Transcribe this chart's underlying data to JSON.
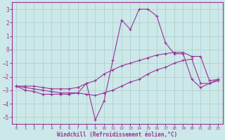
{
  "xlabel": "Windchill (Refroidissement éolien,°C)",
  "background_color": "#cce8e8",
  "grid_color": "#aacccc",
  "line_color": "#993399",
  "xlim": [
    -0.5,
    23.5
  ],
  "ylim": [
    -5.5,
    3.5
  ],
  "yticks": [
    -5,
    -4,
    -3,
    -2,
    -1,
    0,
    1,
    2,
    3
  ],
  "xticks": [
    0,
    1,
    2,
    3,
    4,
    5,
    6,
    7,
    8,
    9,
    10,
    11,
    12,
    13,
    14,
    15,
    16,
    17,
    18,
    19,
    20,
    21,
    22,
    23
  ],
  "series": [
    {
      "x": [
        0,
        1,
        2,
        3,
        4,
        5,
        6,
        7,
        8,
        9,
        10,
        11,
        12,
        13,
        14,
        15,
        16,
        17,
        18,
        19,
        20,
        21,
        22,
        23
      ],
      "y": [
        -2.7,
        -3.0,
        -3.1,
        -3.3,
        -3.3,
        -3.3,
        -3.3,
        -3.2,
        -2.5,
        -5.2,
        -3.8,
        -0.8,
        2.2,
        1.5,
        3.0,
        3.0,
        2.5,
        0.5,
        -0.3,
        -0.3,
        -2.2,
        -2.8,
        -2.5,
        -2.2
      ]
    },
    {
      "x": [
        0,
        1,
        2,
        3,
        4,
        5,
        6,
        7,
        8,
        9,
        10,
        11,
        12,
        13,
        14,
        15,
        16,
        17,
        18,
        19,
        20,
        21,
        22,
        23
      ],
      "y": [
        -2.7,
        -2.7,
        -2.7,
        -2.8,
        -2.9,
        -2.9,
        -2.9,
        -2.8,
        -2.5,
        -2.3,
        -1.8,
        -1.5,
        -1.2,
        -1.0,
        -0.8,
        -0.6,
        -0.4,
        -0.3,
        -0.2,
        -0.2,
        -0.5,
        -0.5,
        -2.3,
        -2.2
      ]
    },
    {
      "x": [
        0,
        1,
        2,
        3,
        4,
        5,
        6,
        7,
        8,
        9,
        10,
        11,
        12,
        13,
        14,
        15,
        16,
        17,
        18,
        19,
        20,
        21,
        22,
        23
      ],
      "y": [
        -2.7,
        -2.8,
        -2.9,
        -3.0,
        -3.1,
        -3.2,
        -3.2,
        -3.2,
        -3.3,
        -3.4,
        -3.2,
        -3.0,
        -2.7,
        -2.4,
        -2.2,
        -1.8,
        -1.5,
        -1.3,
        -1.0,
        -0.8,
        -0.7,
        -2.5,
        -2.5,
        -2.3
      ]
    }
  ]
}
